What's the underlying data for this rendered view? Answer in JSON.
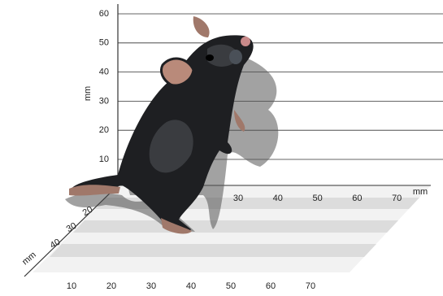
{
  "vertical_axis": {
    "label": "mm",
    "ticks": [
      10,
      20,
      30,
      40,
      50,
      60
    ]
  },
  "back_axis": {
    "label": "mm",
    "ticks": [
      30,
      40,
      50,
      60,
      70
    ]
  },
  "depth_axis": {
    "label": "mm",
    "ticks": [
      20,
      30,
      40
    ]
  },
  "front_axis": {
    "ticks": [
      10,
      20,
      30,
      40,
      50,
      60,
      70
    ]
  }
}
